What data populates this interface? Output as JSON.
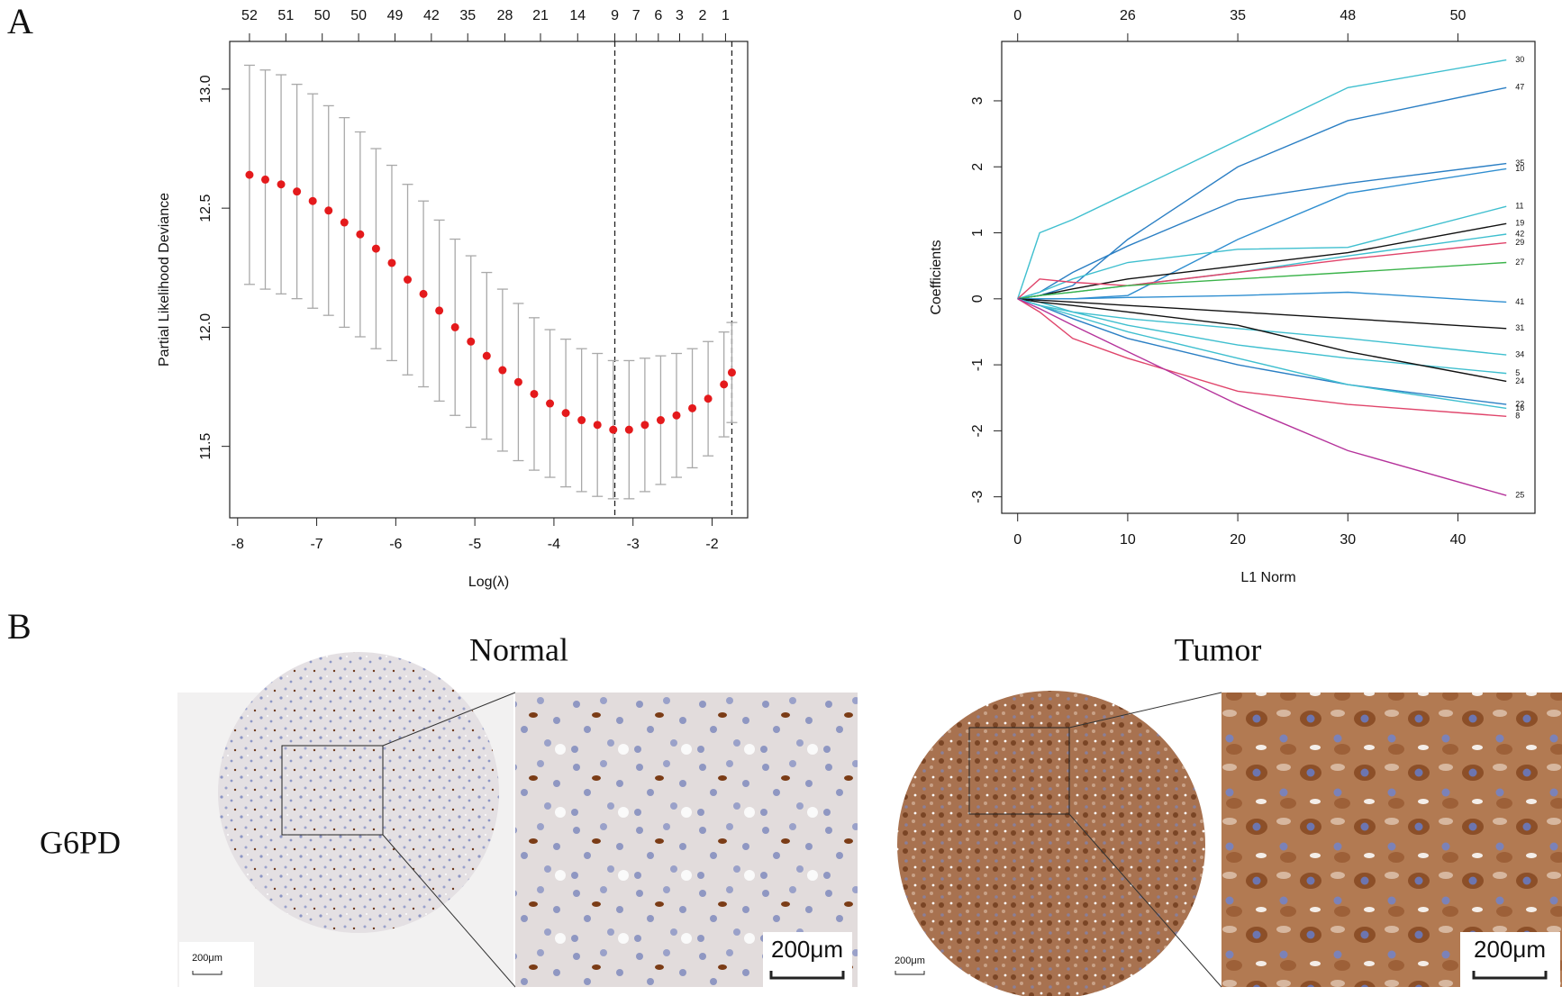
{
  "panel_labels": {
    "a": "A",
    "b": "B"
  },
  "ihc": {
    "gene": "G6PD",
    "normal": "Normal",
    "tumor": "Tumor",
    "scale_labels": [
      "200μm",
      "200μm",
      "200μm",
      "200μm"
    ]
  },
  "chart_data": [
    {
      "type": "errorbar",
      "x_label": "Log(λ)",
      "y_label": "Partial Likelihood Deviance",
      "color": "#e41a1c",
      "bar_color": "#a9a9a9",
      "x": [
        -7.85,
        -7.65,
        -7.45,
        -7.25,
        -7.05,
        -6.85,
        -6.65,
        -6.45,
        -6.25,
        -6.05,
        -5.85,
        -5.65,
        -5.45,
        -5.25,
        -5.05,
        -4.85,
        -4.65,
        -4.45,
        -4.25,
        -4.05,
        -3.85,
        -3.65,
        -3.45,
        -3.25,
        -3.05,
        -2.85,
        -2.65,
        -2.45,
        -2.25,
        -2.05,
        -1.85,
        -1.75
      ],
      "values": [
        12.64,
        12.62,
        12.6,
        12.57,
        12.53,
        12.49,
        12.44,
        12.39,
        12.33,
        12.27,
        12.2,
        12.14,
        12.07,
        12.0,
        11.94,
        11.88,
        11.82,
        11.77,
        11.72,
        11.68,
        11.64,
        11.61,
        11.59,
        11.57,
        11.57,
        11.59,
        11.61,
        11.63,
        11.66,
        11.7,
        11.76,
        11.81
      ],
      "errors": [
        0.46,
        0.46,
        0.46,
        0.45,
        0.45,
        0.44,
        0.44,
        0.43,
        0.42,
        0.41,
        0.4,
        0.39,
        0.38,
        0.37,
        0.36,
        0.35,
        0.34,
        0.33,
        0.32,
        0.31,
        0.31,
        0.3,
        0.3,
        0.29,
        0.29,
        0.28,
        0.27,
        0.26,
        0.25,
        0.24,
        0.22,
        0.21
      ],
      "xlim": [
        -8.1,
        -1.55
      ],
      "ylim": [
        11.2,
        13.2
      ],
      "xticks": [
        -8,
        -7,
        -6,
        -5,
        -4,
        -3,
        -2
      ],
      "yticks": [
        11.5,
        {
          "value": 12,
          "label": "12.0"
        },
        12.5,
        {
          "value": 13,
          "label": "13.0"
        }
      ],
      "x2ticks": [
        {
          "value": -7.85,
          "label": "52"
        },
        {
          "value": -7.39,
          "label": "51"
        },
        {
          "value": -6.93,
          "label": "50"
        },
        {
          "value": -6.47,
          "label": "50"
        },
        {
          "value": -6.01,
          "label": "49"
        },
        {
          "value": -5.55,
          "label": "42"
        },
        {
          "value": -5.09,
          "label": "35"
        },
        {
          "value": -4.62,
          "label": "28"
        },
        {
          "value": -4.17,
          "label": "21"
        },
        {
          "value": -3.7,
          "label": "14"
        },
        {
          "value": -3.23,
          "label": "9"
        },
        {
          "value": -2.96,
          "label": "7"
        },
        {
          "value": -2.68,
          "label": "6"
        },
        {
          "value": -2.41,
          "label": "3"
        },
        {
          "value": -2.12,
          "label": "2"
        },
        {
          "value": -1.83,
          "label": "1"
        }
      ],
      "vlines": [
        -3.23,
        -1.75
      ]
    },
    {
      "type": "line",
      "x_label": "L1 Norm",
      "y_label": "Coefficients",
      "x": [
        0,
        2,
        5,
        10,
        20,
        30,
        44.4
      ],
      "series": [
        {
          "name": "30",
          "color": "#3fbfcf",
          "values": [
            0,
            1.0,
            1.2,
            1.6,
            2.4,
            3.2,
            3.62
          ]
        },
        {
          "name": "47",
          "color": "#2b7fc4",
          "values": [
            0,
            0.05,
            0.2,
            0.9,
            2.0,
            2.7,
            3.2
          ]
        },
        {
          "name": "35",
          "color": "#2b7fc4",
          "values": [
            0,
            0.1,
            0.4,
            0.8,
            1.5,
            1.75,
            2.05
          ]
        },
        {
          "name": "10",
          "color": "#2f8ed0",
          "values": [
            0,
            0,
            0,
            0.05,
            0.9,
            1.6,
            1.97
          ]
        },
        {
          "name": "11",
          "color": "#3fbfcf",
          "values": [
            0,
            0.1,
            0.3,
            0.55,
            0.75,
            0.78,
            1.4
          ]
        },
        {
          "name": "19",
          "color": "#111111",
          "values": [
            0,
            0.05,
            0.15,
            0.3,
            0.5,
            0.7,
            1.14
          ]
        },
        {
          "name": "42",
          "color": "#3fbfcf",
          "values": [
            0,
            0.05,
            0.1,
            0.2,
            0.4,
            0.65,
            0.98
          ]
        },
        {
          "name": "29",
          "color": "#e0456b",
          "values": [
            0,
            0.3,
            0.25,
            0.2,
            0.4,
            0.6,
            0.85
          ]
        },
        {
          "name": "27",
          "color": "#3bb34a",
          "values": [
            0,
            0.05,
            0.1,
            0.2,
            0.3,
            0.4,
            0.55
          ]
        },
        {
          "name": "41",
          "color": "#2f8ed0",
          "values": [
            0,
            0,
            0,
            0.02,
            0.05,
            0.1,
            -0.05
          ]
        },
        {
          "name": "31",
          "color": "#111111",
          "values": [
            0,
            -0.02,
            -0.05,
            -0.1,
            -0.2,
            -0.3,
            -0.45
          ]
        },
        {
          "name": "34",
          "color": "#3fbfcf",
          "values": [
            0,
            -0.1,
            -0.2,
            -0.3,
            -0.45,
            -0.6,
            -0.85
          ]
        },
        {
          "name": "5",
          "color": "#3fbfcf",
          "values": [
            0,
            -0.05,
            -0.2,
            -0.4,
            -0.7,
            -0.9,
            -1.13
          ]
        },
        {
          "name": "24",
          "color": "#111111",
          "values": [
            0,
            -0.05,
            -0.1,
            -0.2,
            -0.4,
            -0.8,
            -1.25
          ]
        },
        {
          "name": "22",
          "color": "#2b7fc4",
          "values": [
            0,
            -0.1,
            -0.3,
            -0.6,
            -1.0,
            -1.3,
            -1.6
          ]
        },
        {
          "name": "16",
          "color": "#3fbfcf",
          "values": [
            0,
            -0.1,
            -0.25,
            -0.5,
            -0.9,
            -1.3,
            -1.66
          ]
        },
        {
          "name": "8",
          "color": "#e0456b",
          "values": [
            0,
            -0.2,
            -0.6,
            -0.9,
            -1.4,
            -1.6,
            -1.78
          ]
        },
        {
          "name": "25",
          "color": "#b5339b",
          "values": [
            0,
            -0.15,
            -0.4,
            -0.8,
            -1.6,
            -2.3,
            -2.98
          ]
        }
      ],
      "xlim": [
        -1.45,
        47
      ],
      "ylim": [
        -3.25,
        3.9
      ],
      "xticks": [
        0,
        10,
        20,
        30,
        40
      ],
      "yticks": [
        -3,
        -2,
        -1,
        0,
        1,
        2,
        3
      ],
      "x2ticks": [
        0,
        {
          "value": 10,
          "label": "26"
        },
        {
          "value": 20,
          "label": "35"
        },
        {
          "value": 30,
          "label": "48"
        },
        {
          "value": 40,
          "label": "50"
        }
      ]
    }
  ]
}
